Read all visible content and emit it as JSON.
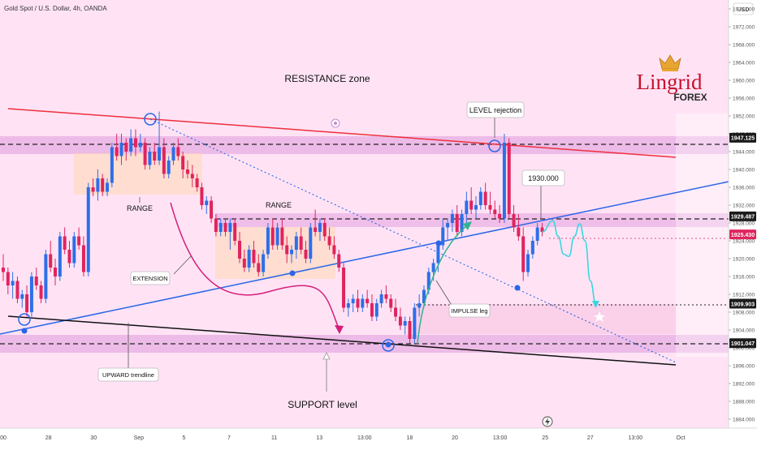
{
  "header": {
    "symbol_title": "Gold Spot / U.S. Dollar, 4h, OANDA",
    "currency": "USD"
  },
  "brand": {
    "name": "Lingrid",
    "sub": "FOREX",
    "color": "#c8102e",
    "crown_color": "#e8a530"
  },
  "colors": {
    "background": "#ffe3f5",
    "band": "#cc6fcf",
    "bull": "#2d6fe8",
    "bear": "#e0245e",
    "resistance_line": "#ef2f3c",
    "trendline": "#2b66e6",
    "support_line": "#111111",
    "projection": "#3ad6e0",
    "arrow_magenta": "#d41e7a",
    "arrow_teal": "#2bb58f"
  },
  "price_scale": {
    "ticks": [
      "1976.000",
      "1972.000",
      "1968.000",
      "1964.000",
      "1960.000",
      "1956.000",
      "1952.000",
      "1948.000",
      "1944.000",
      "1940.000",
      "1936.000",
      "1932.000",
      "1928.000",
      "1924.000",
      "1920.000",
      "1916.000",
      "1912.000",
      "1908.000",
      "1904.000",
      "1900.000",
      "1896.000",
      "1892.000",
      "1888.000",
      "1884.000"
    ],
    "tags": [
      {
        "label": "1947.125",
        "value": 1947.125,
        "style": "dark"
      },
      {
        "label": "1929.487",
        "value": 1929.487,
        "style": "dark"
      },
      {
        "label": "1925.430",
        "value": 1925.43,
        "style": "red"
      },
      {
        "label": "1909.903",
        "value": 1909.903,
        "style": "dark"
      },
      {
        "label": "1901.047",
        "value": 1901.047,
        "style": "dark"
      }
    ]
  },
  "time_axis": {
    "labels": [
      "00",
      "28",
      "30",
      "Sep",
      "5",
      "7",
      "11",
      "13",
      "13:00",
      "18",
      "20",
      "13:00",
      "25",
      "27",
      "13:00",
      "Oct"
    ]
  },
  "annotations": {
    "resistance_zone": "RESISTANCE zone",
    "level_rejection": "LEVEL rejection",
    "price_target": "1930.000",
    "range_1": "RANGE",
    "range_2": "RANGE",
    "extension": "EXTENSION",
    "impulse_leg": "IMPULSE leg",
    "upward_trendline": "UPWARD trendline",
    "support_level": "SUPPORT level"
  },
  "chart_data": {
    "type": "candlestick",
    "symbol": "XAUUSD",
    "timeframe": "4h",
    "ylim": [
      1882,
      1978
    ],
    "horizontal_levels": [
      1947.125,
      1929.487,
      1909.903,
      1901.047
    ],
    "candles": [
      [
        1918,
        1921,
        1915,
        1917
      ],
      [
        1917,
        1918,
        1912,
        1914
      ],
      [
        1914,
        1917,
        1911,
        1915
      ],
      [
        1915,
        1916,
        1910,
        1911
      ],
      [
        1911,
        1913,
        1909,
        1912
      ],
      [
        1912,
        1914,
        1907,
        1908
      ],
      [
        1908,
        1917,
        1907,
        1916
      ],
      [
        1916,
        1918,
        1913,
        1914
      ],
      [
        1914,
        1915,
        1910,
        1911
      ],
      [
        1911,
        1922,
        1910,
        1921
      ],
      [
        1921,
        1924,
        1917,
        1918
      ],
      [
        1918,
        1920,
        1914,
        1916
      ],
      [
        1916,
        1926,
        1915,
        1925
      ],
      [
        1925,
        1927,
        1921,
        1922
      ],
      [
        1922,
        1924,
        1918,
        1919
      ],
      [
        1919,
        1926,
        1918,
        1925
      ],
      [
        1925,
        1927,
        1922,
        1923
      ],
      [
        1923,
        1925,
        1916,
        1917
      ],
      [
        1917,
        1937,
        1916,
        1936
      ],
      [
        1936,
        1938,
        1934,
        1935
      ],
      [
        1935,
        1940,
        1933,
        1938
      ],
      [
        1938,
        1939,
        1934,
        1935
      ],
      [
        1935,
        1938,
        1934,
        1937
      ],
      [
        1937,
        1946,
        1936,
        1945
      ],
      [
        1945,
        1948,
        1942,
        1943
      ],
      [
        1943,
        1948,
        1941,
        1946
      ],
      [
        1946,
        1947,
        1942,
        1944
      ],
      [
        1944,
        1949,
        1943,
        1947
      ],
      [
        1947,
        1949,
        1943,
        1945
      ],
      [
        1945,
        1948,
        1944,
        1946
      ],
      [
        1946,
        1947,
        1940,
        1941
      ],
      [
        1941,
        1945,
        1940,
        1944
      ],
      [
        1944,
        1946,
        1941,
        1942
      ],
      [
        1942,
        1953,
        1941,
        1945
      ],
      [
        1945,
        1947,
        1938,
        1939
      ],
      [
        1939,
        1943,
        1938,
        1942
      ],
      [
        1942,
        1946,
        1941,
        1945
      ],
      [
        1945,
        1947,
        1942,
        1943
      ],
      [
        1943,
        1944,
        1938,
        1940
      ],
      [
        1940,
        1942,
        1938,
        1939
      ],
      [
        1939,
        1941,
        1936,
        1938
      ],
      [
        1938,
        1939,
        1935,
        1936
      ],
      [
        1936,
        1937,
        1931,
        1932
      ],
      [
        1932,
        1934,
        1930,
        1933
      ],
      [
        1933,
        1934,
        1928,
        1929
      ],
      [
        1929,
        1930,
        1925,
        1926
      ],
      [
        1926,
        1929,
        1925,
        1928
      ],
      [
        1928,
        1929,
        1925,
        1926
      ],
      [
        1926,
        1929,
        1922,
        1928
      ],
      [
        1928,
        1929,
        1923,
        1924
      ],
      [
        1924,
        1926,
        1919,
        1920
      ],
      [
        1920,
        1922,
        1917,
        1918
      ],
      [
        1918,
        1923,
        1917,
        1922
      ],
      [
        1922,
        1924,
        1918,
        1919
      ],
      [
        1919,
        1921,
        1916,
        1917
      ],
      [
        1917,
        1922,
        1916,
        1921
      ],
      [
        1921,
        1928,
        1920,
        1927
      ],
      [
        1927,
        1929,
        1922,
        1923
      ],
      [
        1923,
        1928,
        1922,
        1927
      ],
      [
        1927,
        1929,
        1922,
        1923
      ],
      [
        1923,
        1925,
        1919,
        1921
      ],
      [
        1921,
        1923,
        1919,
        1922
      ],
      [
        1922,
        1926,
        1920,
        1925
      ],
      [
        1925,
        1927,
        1921,
        1922
      ],
      [
        1922,
        1924,
        1919,
        1920
      ],
      [
        1920,
        1928,
        1919,
        1927
      ],
      [
        1927,
        1931,
        1925,
        1926
      ],
      [
        1926,
        1929,
        1924,
        1928
      ],
      [
        1928,
        1929,
        1924,
        1925
      ],
      [
        1925,
        1927,
        1922,
        1923
      ],
      [
        1923,
        1925,
        1920,
        1921
      ],
      [
        1921,
        1922,
        1917,
        1918
      ],
      [
        1918,
        1919,
        1908,
        1909
      ],
      [
        1909,
        1911,
        1907,
        1910
      ],
      [
        1910,
        1912,
        1908,
        1911
      ],
      [
        1911,
        1913,
        1908,
        1909
      ],
      [
        1909,
        1912,
        1908,
        1911
      ],
      [
        1911,
        1913,
        1909,
        1910
      ],
      [
        1910,
        1912,
        1906,
        1907
      ],
      [
        1907,
        1911,
        1906,
        1910
      ],
      [
        1910,
        1913,
        1909,
        1912
      ],
      [
        1912,
        1914,
        1910,
        1911
      ],
      [
        1911,
        1912,
        1908,
        1909
      ],
      [
        1909,
        1911,
        1906,
        1907
      ],
      [
        1907,
        1909,
        1904,
        1905
      ],
      [
        1905,
        1907,
        1903,
        1906
      ],
      [
        1906,
        1907,
        1901,
        1902
      ],
      [
        1902,
        1910,
        1901,
        1909
      ],
      [
        1909,
        1912,
        1907,
        1910
      ],
      [
        1910,
        1914,
        1909,
        1913
      ],
      [
        1913,
        1918,
        1912,
        1917
      ],
      [
        1917,
        1920,
        1915,
        1919
      ],
      [
        1919,
        1924,
        1917,
        1923
      ],
      [
        1923,
        1929,
        1922,
        1927
      ],
      [
        1927,
        1929,
        1924,
        1928
      ],
      [
        1928,
        1931,
        1926,
        1930
      ],
      [
        1930,
        1932,
        1925,
        1926
      ],
      [
        1926,
        1931,
        1925,
        1930
      ],
      [
        1930,
        1935,
        1928,
        1933
      ],
      [
        1933,
        1936,
        1930,
        1931
      ],
      [
        1931,
        1934,
        1929,
        1932
      ],
      [
        1932,
        1936,
        1931,
        1935
      ],
      [
        1935,
        1937,
        1931,
        1932
      ],
      [
        1932,
        1935,
        1930,
        1931
      ],
      [
        1931,
        1933,
        1929,
        1930
      ],
      [
        1930,
        1932,
        1928,
        1929
      ],
      [
        1929,
        1948,
        1928,
        1946
      ],
      [
        1946,
        1947,
        1929,
        1930
      ],
      [
        1930,
        1932,
        1926,
        1927
      ],
      [
        1927,
        1930,
        1924,
        1925
      ],
      [
        1925,
        1927,
        1915,
        1917
      ],
      [
        1917,
        1922,
        1916,
        1921
      ],
      [
        1921,
        1925,
        1920,
        1924
      ],
      [
        1924,
        1928,
        1923,
        1927
      ],
      [
        1927,
        1928,
        1925,
        1926
      ]
    ],
    "projection_path": [
      [
        0,
        1926
      ],
      [
        4,
        1928.5
      ],
      [
        6,
        1925
      ],
      [
        8,
        1921
      ],
      [
        10,
        1920.5
      ],
      [
        12,
        1925
      ],
      [
        14,
        1927.8
      ],
      [
        16,
        1924
      ],
      [
        18,
        1915
      ],
      [
        20,
        1910
      ]
    ]
  }
}
